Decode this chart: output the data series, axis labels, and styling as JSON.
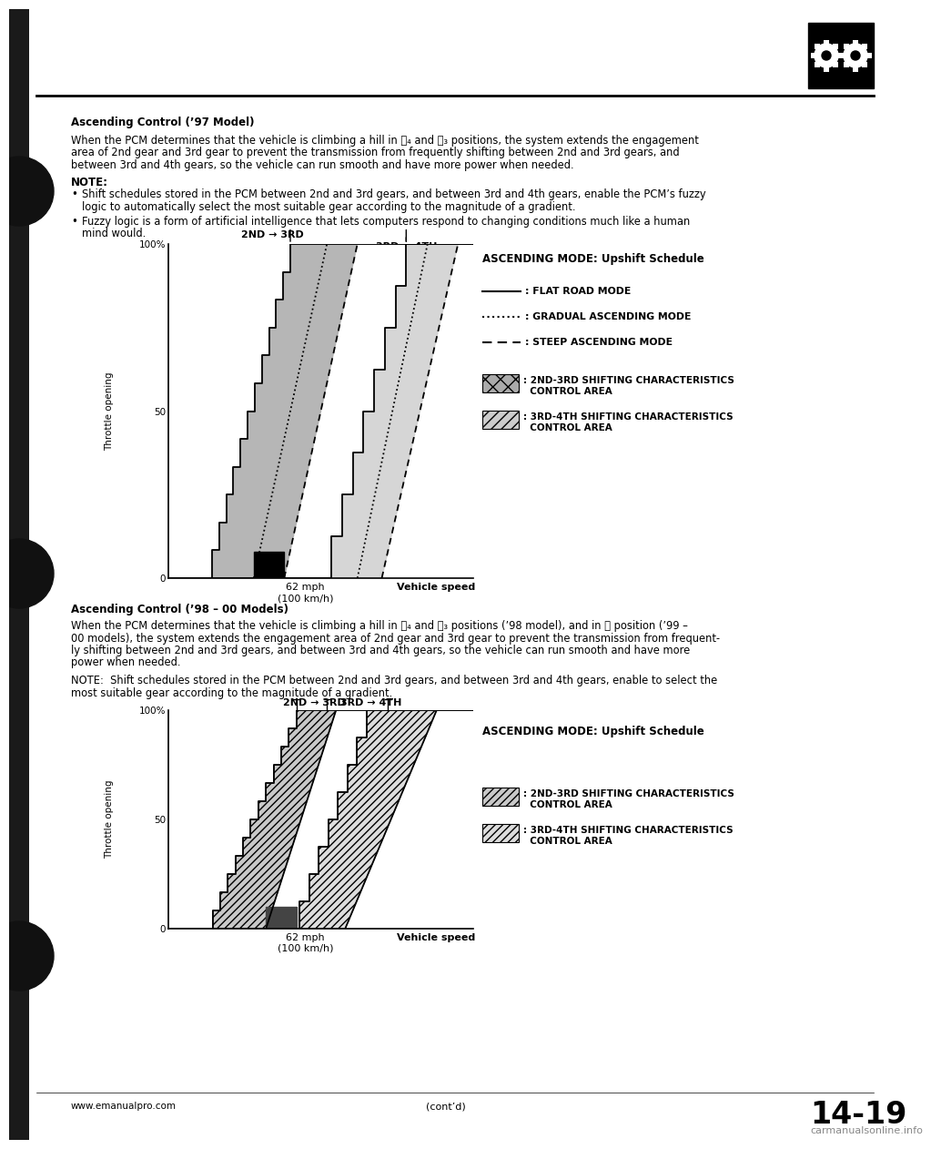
{
  "page_bg": "#ffffff",
  "title_section1": "Ascending Control (’97 Model)",
  "body1_lines": [
    "When the PCM determines that the vehicle is climbing a hill in Ⓓ₄ and Ⓓ₃ positions, the system extends the engagement",
    "area of 2nd gear and 3rd gear to prevent the transmission from frequently shifting between 2nd and 3rd gears, and",
    "between 3rd and 4th gears, so the vehicle can run smooth and have more power when needed."
  ],
  "note_header": "NOTE:",
  "note_bullets": [
    [
      "Shift schedules stored in the PCM between 2nd and 3rd gears, and between 3rd and 4th gears, enable the PCM’s fuzzy",
      "logic to automatically select the most suitable gear according to the magnitude of a gradient."
    ],
    [
      "Fuzzy logic is a form of artificial intelligence that lets computers respond to changing conditions much like a human",
      "mind would."
    ]
  ],
  "chart1_title": "ASCENDING MODE: Upshift Schedule",
  "chart1_ylabel": "Throttle opening",
  "chart1_xlabel1": "62 mph",
  "chart1_xlabel2": "(100 km/h)",
  "chart1_xlabel3": "Vehicle speed",
  "chart1_2nd3rd": "2ND → 3RD",
  "chart1_3rd4th": "3RD → 4TH",
  "legend1_flat": ": FLAT ROAD MODE",
  "legend1_gradual": ": GRADUAL ASCENDING MODE",
  "legend1_steep": ": STEEP ASCENDING MODE",
  "legend1_box1": ": 2ND-3RD SHIFTING CHARACTERISTICS",
  "legend1_box1b": "  CONTROL AREA",
  "legend1_box2": ": 3RD-4TH SHIFTING CHARACTERISTICS",
  "legend1_box2b": "  CONTROL AREA",
  "title_section2": "Ascending Control (’98 – 00 Models)",
  "body2_lines": [
    "When the PCM determines that the vehicle is climbing a hill in Ⓓ₄ and Ⓓ₃ positions (’98 model), and in Ⓓ position (’99 –",
    "00 models), the system extends the engagement area of 2nd gear and 3rd gear to prevent the transmission from frequent-",
    "ly shifting between 2nd and 3rd gears, and between 3rd and 4th gears, so the vehicle can run smooth and have more",
    "power when needed."
  ],
  "note2_lines": [
    "NOTE:  Shift schedules stored in the PCM between 2nd and 3rd gears, and between 3rd and 4th gears, enable to select the",
    "most suitable gear according to the magnitude of a gradient."
  ],
  "chart2_title": "ASCENDING MODE: Upshift Schedule",
  "chart2_ylabel": "Throttle opening",
  "chart2_xlabel1": "62 mph",
  "chart2_xlabel2": "(100 km/h)",
  "chart2_xlabel3": "Vehicle speed",
  "chart2_2nd3rd": "2ND → 3RD",
  "chart2_3rd4th": "3RD → 4TH",
  "legend2_box1": ": 2ND-3RD SHIFTING CHARACTERISTICS",
  "legend2_box1b": "  CONTROL AREA",
  "legend2_box2": ": 3RD-4TH SHIFTING CHARACTERISTICS",
  "legend2_box2b": "  CONTROL AREA",
  "footer_left": "www.emanualpro.com",
  "footer_right": "14-19",
  "footer_contd": "(cont’d)",
  "watermark": "carmanualsonline.info"
}
